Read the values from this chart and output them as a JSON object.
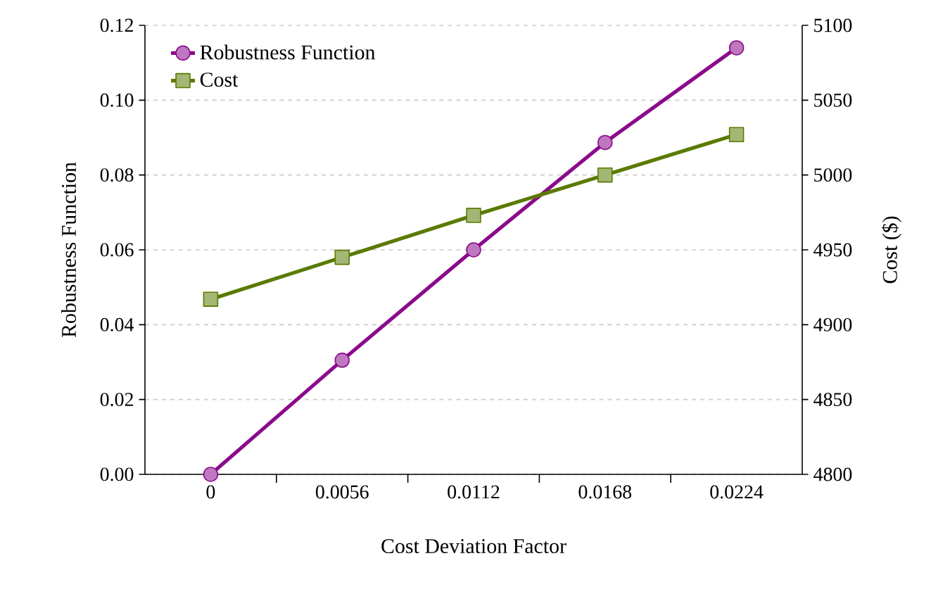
{
  "chart_data": {
    "type": "line",
    "xlabel": "Cost Deviation Factor",
    "ylabel": "Robustness Function",
    "y2label": "Cost ($)",
    "categories": [
      "0",
      "0.0056",
      "0.0112",
      "0.0168",
      "0.0224"
    ],
    "series": [
      {
        "name": "Robustness Function",
        "color": "#8b0a8b",
        "marker": "circle",
        "values": [
          0,
          0.0305,
          0.06,
          0.0887,
          0.114
        ]
      },
      {
        "name": "Cost",
        "color": "#5a7a00",
        "marker": "square",
        "axis": "y2",
        "values": [
          4917,
          4945,
          4973,
          5000,
          5027
        ]
      }
    ],
    "ylim": [
      0,
      0.12
    ],
    "yticks": [
      {
        "value": 0,
        "label": "0.00"
      },
      {
        "value": 0.02,
        "label": "0.02"
      },
      {
        "value": 0.04,
        "label": "0.04"
      },
      {
        "value": 0.06,
        "label": "0.06"
      },
      {
        "value": 0.08,
        "label": "0.08"
      },
      {
        "value": 0.1,
        "label": "0.10"
      },
      {
        "value": 0.12,
        "label": "0.12"
      }
    ],
    "y2lim": [
      4800,
      5100
    ],
    "y2ticks": [
      4800,
      4850,
      4900,
      4950,
      5000,
      5050,
      5100
    ],
    "grid": "y",
    "legend": "top left"
  }
}
